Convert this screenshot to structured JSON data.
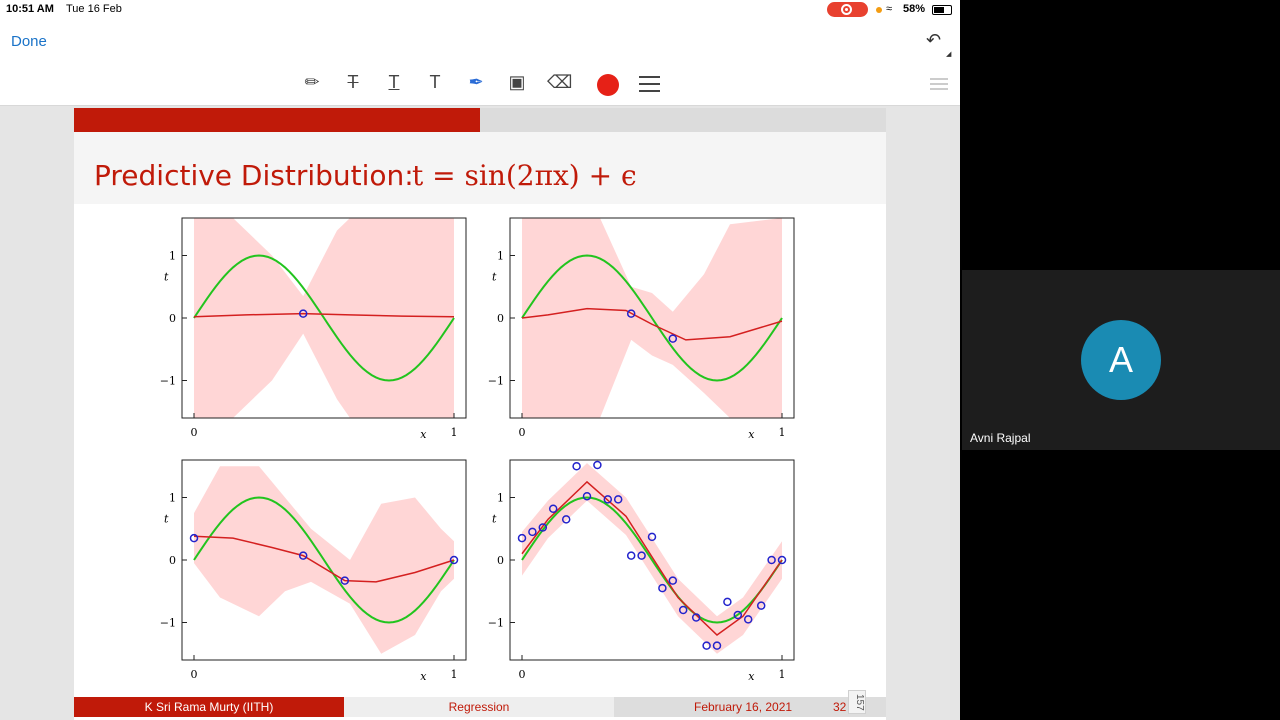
{
  "status_bar": {
    "time": "10:51 AM",
    "date": "Tue 16 Feb",
    "battery": "58%",
    "battery_level": 0.58
  },
  "toolbar": {
    "done_label": "Done",
    "tools": [
      "pencil-icon",
      "strikethrough-text-icon",
      "underline-text-icon",
      "text-icon",
      "pen-icon",
      "comment-icon",
      "eraser-icon"
    ],
    "active_color": "#e62117"
  },
  "slide": {
    "title": "Predictive Distribution:",
    "formula": "t = sin(2πx) + ϵ",
    "progress": 0.5,
    "accent": "#c01a09"
  },
  "chart_data": [
    {
      "type": "line",
      "ylabel": "t",
      "xlabel": "x",
      "xlim": [
        0,
        1
      ],
      "ylim": [
        -1.6,
        1.6
      ],
      "xticks": [
        "0",
        "1"
      ],
      "yticks": [
        "1",
        "0",
        "−1"
      ],
      "data_points": [
        [
          0.42,
          0.07
        ]
      ],
      "prediction_mean": [
        [
          0,
          0.02
        ],
        [
          0.2,
          0.05
        ],
        [
          0.42,
          0.07
        ],
        [
          0.6,
          0.05
        ],
        [
          0.8,
          0.03
        ],
        [
          1,
          0.02
        ]
      ],
      "band_upper": [
        [
          0,
          1.6
        ],
        [
          0.15,
          1.6
        ],
        [
          0.3,
          1.0
        ],
        [
          0.42,
          0.35
        ],
        [
          0.55,
          1.4
        ],
        [
          0.6,
          1.6
        ],
        [
          1,
          1.6
        ]
      ],
      "band_lower": [
        [
          0,
          -1.6
        ],
        [
          0.15,
          -1.6
        ],
        [
          0.3,
          -1.0
        ],
        [
          0.42,
          -0.25
        ],
        [
          0.55,
          -1.3
        ],
        [
          0.6,
          -1.6
        ],
        [
          1,
          -1.6
        ]
      ]
    },
    {
      "type": "line",
      "ylabel": "t",
      "xlabel": "x",
      "xlim": [
        0,
        1
      ],
      "ylim": [
        -1.6,
        1.6
      ],
      "xticks": [
        "0",
        "1"
      ],
      "yticks": [
        "1",
        "0",
        "−1"
      ],
      "data_points": [
        [
          0.42,
          0.07
        ],
        [
          0.58,
          -0.33
        ]
      ],
      "prediction_mean": [
        [
          0,
          0.0
        ],
        [
          0.1,
          0.05
        ],
        [
          0.25,
          0.15
        ],
        [
          0.4,
          0.12
        ],
        [
          0.5,
          -0.1
        ],
        [
          0.63,
          -0.35
        ],
        [
          0.8,
          -0.3
        ],
        [
          1,
          -0.05
        ]
      ],
      "band_upper": [
        [
          0,
          1.6
        ],
        [
          0.3,
          1.6
        ],
        [
          0.42,
          0.5
        ],
        [
          0.5,
          0.4
        ],
        [
          0.58,
          0.1
        ],
        [
          0.7,
          0.7
        ],
        [
          0.8,
          1.5
        ],
        [
          1,
          1.6
        ]
      ],
      "band_lower": [
        [
          0,
          -1.6
        ],
        [
          0.3,
          -1.6
        ],
        [
          0.42,
          -0.35
        ],
        [
          0.5,
          -0.6
        ],
        [
          0.58,
          -0.75
        ],
        [
          0.7,
          -1.2
        ],
        [
          0.8,
          -1.6
        ],
        [
          1,
          -1.6
        ]
      ]
    },
    {
      "type": "line",
      "ylabel": "t",
      "xlabel": "x",
      "xlim": [
        0,
        1
      ],
      "ylim": [
        -1.6,
        1.6
      ],
      "xticks": [
        "0",
        "1"
      ],
      "yticks": [
        "1",
        "0",
        "−1"
      ],
      "data_points": [
        [
          0.0,
          0.35
        ],
        [
          0.42,
          0.07
        ],
        [
          0.58,
          -0.33
        ],
        [
          1.0,
          0.0
        ]
      ],
      "prediction_mean": [
        [
          0,
          0.38
        ],
        [
          0.15,
          0.35
        ],
        [
          0.3,
          0.2
        ],
        [
          0.42,
          0.07
        ],
        [
          0.58,
          -0.33
        ],
        [
          0.7,
          -0.35
        ],
        [
          0.85,
          -0.2
        ],
        [
          1,
          0.0
        ]
      ],
      "band_upper": [
        [
          0,
          0.75
        ],
        [
          0.1,
          1.5
        ],
        [
          0.25,
          1.5
        ],
        [
          0.35,
          1.0
        ],
        [
          0.45,
          0.5
        ],
        [
          0.6,
          0.0
        ],
        [
          0.72,
          0.9
        ],
        [
          0.85,
          1.0
        ],
        [
          0.95,
          0.5
        ],
        [
          1,
          0.3
        ]
      ],
      "band_lower": [
        [
          0,
          -0.05
        ],
        [
          0.1,
          -0.6
        ],
        [
          0.25,
          -0.9
        ],
        [
          0.35,
          -0.5
        ],
        [
          0.45,
          -0.35
        ],
        [
          0.6,
          -0.7
        ],
        [
          0.72,
          -1.5
        ],
        [
          0.85,
          -1.2
        ],
        [
          0.95,
          -0.5
        ],
        [
          1,
          -0.3
        ]
      ]
    },
    {
      "type": "line",
      "ylabel": "t",
      "xlabel": "x",
      "xlim": [
        0,
        1
      ],
      "ylim": [
        -1.6,
        1.6
      ],
      "xticks": [
        "0",
        "1"
      ],
      "yticks": [
        "1",
        "0",
        "−1"
      ],
      "data_points": [
        [
          0.0,
          0.35
        ],
        [
          0.04,
          0.45
        ],
        [
          0.08,
          0.52
        ],
        [
          0.12,
          0.82
        ],
        [
          0.17,
          0.65
        ],
        [
          0.21,
          1.5
        ],
        [
          0.25,
          1.02
        ],
        [
          0.29,
          1.52
        ],
        [
          0.33,
          0.97
        ],
        [
          0.37,
          0.97
        ],
        [
          0.42,
          0.07
        ],
        [
          0.46,
          0.07
        ],
        [
          0.5,
          0.37
        ],
        [
          0.54,
          -0.45
        ],
        [
          0.58,
          -0.33
        ],
        [
          0.62,
          -0.8
        ],
        [
          0.67,
          -0.92
        ],
        [
          0.71,
          -1.37
        ],
        [
          0.75,
          -1.37
        ],
        [
          0.79,
          -0.67
        ],
        [
          0.83,
          -0.88
        ],
        [
          0.87,
          -0.95
        ],
        [
          0.92,
          -0.73
        ],
        [
          0.96,
          0.0
        ],
        [
          1.0,
          0.0
        ]
      ],
      "prediction_mean": [
        [
          0,
          0.1
        ],
        [
          0.1,
          0.65
        ],
        [
          0.25,
          1.25
        ],
        [
          0.4,
          0.7
        ],
        [
          0.5,
          0.05
        ],
        [
          0.6,
          -0.6
        ],
        [
          0.75,
          -1.2
        ],
        [
          0.85,
          -0.9
        ],
        [
          1,
          0.0
        ]
      ],
      "band_upper": [
        [
          0,
          0.45
        ],
        [
          0.1,
          0.95
        ],
        [
          0.25,
          1.55
        ],
        [
          0.4,
          1.0
        ],
        [
          0.5,
          0.35
        ],
        [
          0.6,
          -0.3
        ],
        [
          0.75,
          -0.9
        ],
        [
          0.85,
          -0.6
        ],
        [
          1,
          0.3
        ]
      ],
      "band_lower": [
        [
          0,
          -0.25
        ],
        [
          0.1,
          0.35
        ],
        [
          0.25,
          0.95
        ],
        [
          0.4,
          0.4
        ],
        [
          0.5,
          -0.25
        ],
        [
          0.6,
          -0.9
        ],
        [
          0.75,
          -1.5
        ],
        [
          0.85,
          -1.2
        ],
        [
          1,
          -0.3
        ]
      ]
    }
  ],
  "footer": {
    "author": "K Sri Rama Murty  (IITH)",
    "section": "Regression",
    "date": "February 16, 2021",
    "page": "32"
  },
  "page_indicator": "157",
  "video": {
    "avatar_letter": "A",
    "participant_name": "Avni Rajpal"
  }
}
